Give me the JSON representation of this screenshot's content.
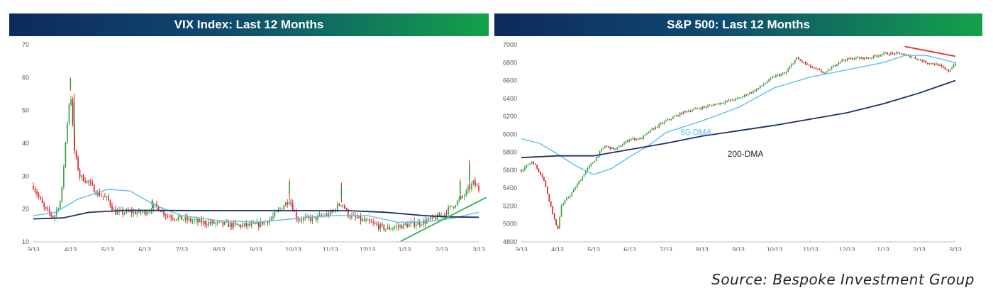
{
  "source": "Source: Bespoke Investment Group",
  "colors": {
    "up": "#2e9e3e",
    "down": "#d7191c",
    "ma_short": "#5bc0eb",
    "ma_long": "#1a2f6b",
    "trend_up": "#31b34b",
    "trend_down": "#e8262a"
  },
  "chart_data": [
    {
      "type": "candlestick",
      "title": "VIX Index: Last 12 Months",
      "x_ticks": [
        "3/13",
        "4/13",
        "5/13",
        "6/13",
        "7/13",
        "8/13",
        "9/13",
        "10/13",
        "11/13",
        "12/13",
        "1/13",
        "2/13",
        "3/13"
      ],
      "y_ticks": [
        "10",
        "20",
        "30",
        "40",
        "50",
        "60",
        "70"
      ],
      "ylim": [
        10,
        70
      ],
      "xlim": [
        0,
        12
      ],
      "grid": false,
      "price_path": [
        [
          0,
          27
        ],
        [
          0.3,
          20
        ],
        [
          0.55,
          17.5
        ],
        [
          0.75,
          23
        ],
        [
          0.9,
          45
        ],
        [
          1.0,
          56
        ],
        [
          1.1,
          38
        ],
        [
          1.25,
          30
        ],
        [
          1.5,
          28
        ],
        [
          1.7,
          25
        ],
        [
          2.0,
          23
        ],
        [
          2.2,
          19
        ],
        [
          2.6,
          19
        ],
        [
          3.0,
          19
        ],
        [
          3.3,
          21
        ],
        [
          3.6,
          18
        ],
        [
          4.0,
          17
        ],
        [
          4.5,
          16
        ],
        [
          5.0,
          15.5
        ],
        [
          5.5,
          15
        ],
        [
          6.0,
          15
        ],
        [
          6.4,
          17
        ],
        [
          6.9,
          23
        ],
        [
          7.1,
          17
        ],
        [
          7.5,
          17
        ],
        [
          8.0,
          18.5
        ],
        [
          8.3,
          22
        ],
        [
          8.5,
          18
        ],
        [
          9.0,
          16
        ],
        [
          9.5,
          14
        ],
        [
          10.0,
          15
        ],
        [
          10.5,
          16
        ],
        [
          11.0,
          18
        ],
        [
          11.3,
          21
        ],
        [
          11.6,
          24
        ],
        [
          11.85,
          28
        ],
        [
          12.0,
          26
        ]
      ],
      "spikes": [
        [
          0.9,
          45
        ],
        [
          1.0,
          60
        ],
        [
          1.1,
          55
        ],
        [
          3.2,
          23
        ],
        [
          6.9,
          29
        ],
        [
          8.3,
          28
        ],
        [
          11.5,
          29
        ],
        [
          11.75,
          35
        ]
      ],
      "ma_50": [
        [
          0,
          18
        ],
        [
          0.6,
          19
        ],
        [
          1.2,
          23
        ],
        [
          2.0,
          26
        ],
        [
          2.6,
          25.5
        ],
        [
          3.3,
          21
        ],
        [
          4.0,
          18
        ],
        [
          5.0,
          16.5
        ],
        [
          6.0,
          16
        ],
        [
          7.0,
          17
        ],
        [
          8.0,
          18
        ],
        [
          9.0,
          18
        ],
        [
          9.8,
          16
        ],
        [
          10.5,
          16
        ],
        [
          11.2,
          17
        ],
        [
          12.0,
          19
        ]
      ],
      "ma_200": [
        [
          0,
          17
        ],
        [
          0.8,
          17.3
        ],
        [
          1.5,
          19
        ],
        [
          2.5,
          19.6
        ],
        [
          5.0,
          19.5
        ],
        [
          7.0,
          19.5
        ],
        [
          8.5,
          19.5
        ],
        [
          9.5,
          19
        ],
        [
          10.5,
          18
        ],
        [
          11.2,
          17.6
        ],
        [
          12.0,
          17.5
        ]
      ],
      "trendline": [
        [
          9.9,
          10.2
        ],
        [
          12.2,
          23.5
        ]
      ]
    },
    {
      "type": "candlestick",
      "title": "S&P 500: Last 12 Months",
      "x_ticks": [
        "3/13",
        "4/13",
        "5/13",
        "6/13",
        "7/13",
        "8/13",
        "9/13",
        "10/13",
        "11/13",
        "12/13",
        "1/13",
        "2/13",
        "3/13"
      ],
      "y_ticks": [
        "4800",
        "5000",
        "5200",
        "5400",
        "5600",
        "5800",
        "6000",
        "6200",
        "6400",
        "6600",
        "6800",
        "7000"
      ],
      "ylim": [
        4800,
        7000
      ],
      "xlim": [
        0,
        12
      ],
      "grid": false,
      "annotations": [
        {
          "text": "50-DMA",
          "x": 4.4,
          "y": 5990
        },
        {
          "text": "200-DMA",
          "x": 5.7,
          "y": 5750
        }
      ],
      "price_path": [
        [
          0,
          5600
        ],
        [
          0.3,
          5700
        ],
        [
          0.6,
          5520
        ],
        [
          0.85,
          5150
        ],
        [
          1.0,
          4920
        ],
        [
          1.1,
          5200
        ],
        [
          1.4,
          5350
        ],
        [
          1.8,
          5600
        ],
        [
          2.0,
          5700
        ],
        [
          2.3,
          5870
        ],
        [
          2.6,
          5830
        ],
        [
          3.0,
          5950
        ],
        [
          3.3,
          5950
        ],
        [
          3.6,
          6050
        ],
        [
          4.0,
          6150
        ],
        [
          4.5,
          6250
        ],
        [
          5.0,
          6300
        ],
        [
          5.5,
          6350
        ],
        [
          6.0,
          6400
        ],
        [
          6.5,
          6500
        ],
        [
          7.0,
          6650
        ],
        [
          7.3,
          6680
        ],
        [
          7.6,
          6850
        ],
        [
          8.0,
          6750
        ],
        [
          8.4,
          6680
        ],
        [
          8.8,
          6820
        ],
        [
          9.2,
          6850
        ],
        [
          9.6,
          6850
        ],
        [
          10.0,
          6900
        ],
        [
          10.5,
          6900
        ],
        [
          10.9,
          6850
        ],
        [
          11.2,
          6800
        ],
        [
          11.5,
          6780
        ],
        [
          11.8,
          6700
        ],
        [
          12.0,
          6800
        ]
      ],
      "ma_50": [
        [
          0,
          5950
        ],
        [
          0.5,
          5900
        ],
        [
          1.0,
          5780
        ],
        [
          1.5,
          5650
        ],
        [
          2.0,
          5550
        ],
        [
          2.5,
          5620
        ],
        [
          3.0,
          5750
        ],
        [
          3.5,
          5870
        ],
        [
          4.0,
          6020
        ],
        [
          5.0,
          6150
        ],
        [
          6.0,
          6300
        ],
        [
          7.0,
          6520
        ],
        [
          8.0,
          6640
        ],
        [
          9.0,
          6720
        ],
        [
          10.0,
          6800
        ],
        [
          10.6,
          6880
        ],
        [
          11.2,
          6880
        ],
        [
          12.0,
          6800
        ]
      ],
      "ma_200": [
        [
          0,
          5740
        ],
        [
          1.0,
          5760
        ],
        [
          2.0,
          5760
        ],
        [
          3.0,
          5830
        ],
        [
          4.0,
          5900
        ],
        [
          5.0,
          5980
        ],
        [
          6.0,
          6040
        ],
        [
          7.0,
          6100
        ],
        [
          8.0,
          6170
        ],
        [
          9.0,
          6240
        ],
        [
          10.0,
          6340
        ],
        [
          11.0,
          6460
        ],
        [
          12.0,
          6600
        ]
      ],
      "trendline": [
        [
          10.6,
          6980
        ],
        [
          12.0,
          6870
        ]
      ]
    }
  ]
}
